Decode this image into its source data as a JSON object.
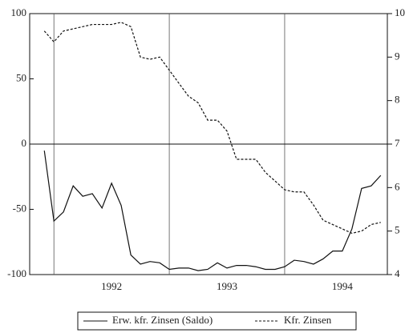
{
  "chart_data": {
    "type": "line",
    "x": [
      1991.917,
      1992,
      1992.083,
      1992.167,
      1992.25,
      1992.333,
      1992.417,
      1992.5,
      1992.583,
      1992.667,
      1992.75,
      1992.833,
      1992.917,
      1993,
      1993.083,
      1993.167,
      1993.25,
      1993.333,
      1993.417,
      1993.5,
      1993.583,
      1993.667,
      1993.75,
      1993.833,
      1993.917,
      1994,
      1994.083,
      1994.167,
      1994.25,
      1994.333,
      1994.417,
      1994.5,
      1994.583,
      1994.667,
      1994.75,
      1994.833
    ],
    "series": [
      {
        "name": "Erw. kfr. Zinsen (Saldo)",
        "color": "#111111",
        "dash": false,
        "values": [
          -5,
          -59,
          -52,
          -32,
          -40,
          -38,
          -49,
          -30,
          -47,
          -85,
          -92,
          -90,
          -91,
          -96,
          -95,
          -95,
          -97,
          -96,
          -91,
          -95,
          -93,
          -93,
          -94,
          -96,
          -96,
          -94,
          -89,
          -90,
          -92,
          -88,
          -82,
          -82,
          -65,
          -34,
          -32,
          -24
        ]
      },
      {
        "name": "Kfr. Zinsen",
        "color": "#111111",
        "dash": true,
        "axis": "y2",
        "values": [
          9.6,
          9.35,
          9.6,
          9.65,
          9.7,
          9.75,
          9.75,
          9.75,
          9.8,
          9.7,
          9.0,
          8.95,
          9.0,
          8.7,
          8.4,
          8.1,
          7.95,
          7.55,
          7.55,
          7.3,
          6.65,
          6.65,
          6.65,
          6.35,
          6.15,
          5.95,
          5.9,
          5.9,
          5.6,
          5.25,
          5.15,
          5.05,
          4.95,
          5.0,
          5.15,
          5.2
        ]
      }
    ],
    "xlim": [
      1991.79,
      1994.89
    ],
    "xticks": [
      {
        "value": 1992.5,
        "label": "1992"
      },
      {
        "value": 1993.5,
        "label": "1993"
      },
      {
        "value": 1994.5,
        "label": "1994"
      }
    ],
    "xgrid": [
      1992,
      1993,
      1994
    ],
    "ylim": [
      -100,
      100
    ],
    "yticks": [
      -100,
      -50,
      0,
      50,
      100
    ],
    "y2lim": [
      4,
      10
    ],
    "y2ticks": [
      4,
      5,
      6,
      7,
      8,
      9,
      10
    ],
    "reference_line": 0,
    "legend": "bottom"
  }
}
